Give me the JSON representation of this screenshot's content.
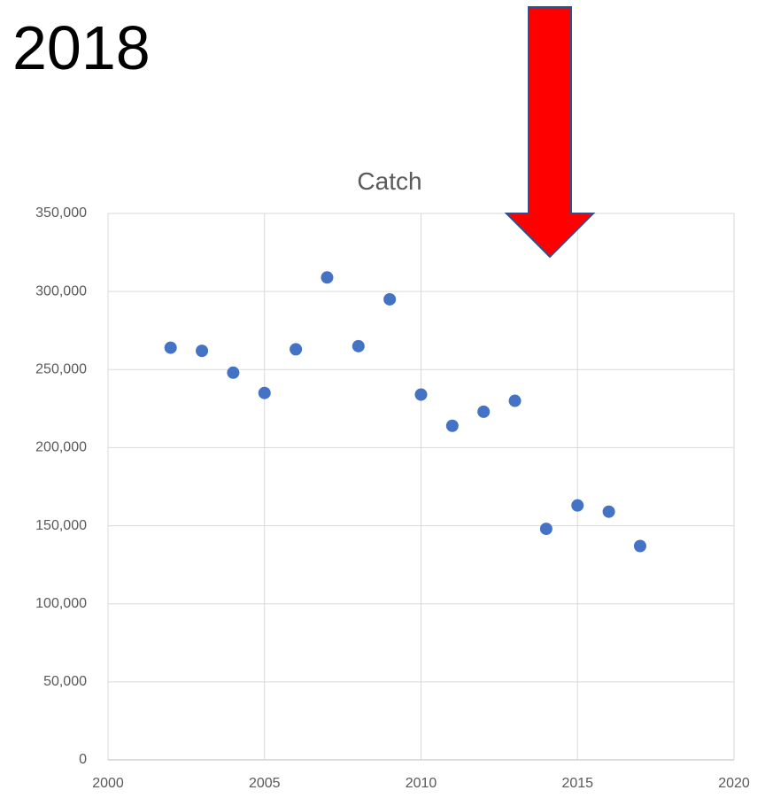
{
  "slide_title": "2018",
  "chart_data": {
    "type": "scatter",
    "title": "Catch",
    "x": [
      2002,
      2003,
      2004,
      2005,
      2006,
      2007,
      2008,
      2009,
      2010,
      2011,
      2012,
      2013,
      2014,
      2015,
      2016,
      2017
    ],
    "values": [
      264000,
      262000,
      248000,
      235000,
      263000,
      309000,
      265000,
      295000,
      234000,
      214000,
      223000,
      230000,
      148000,
      163000,
      159000,
      137000
    ],
    "color": "#4472c4",
    "xlim": [
      2000,
      2020
    ],
    "xticks": [
      2000,
      2005,
      2010,
      2015,
      2020
    ],
    "ylim": [
      0,
      350000
    ],
    "yticks": [
      0,
      {
        "value": 50000,
        "label": "50,000"
      },
      {
        "value": 100000,
        "label": "100,000"
      },
      {
        "value": 150000,
        "label": "150,000"
      },
      {
        "value": 200000,
        "label": "200,000"
      },
      {
        "value": 250000,
        "label": "250,000"
      },
      {
        "value": 300000,
        "label": "300,000"
      },
      {
        "value": 350000,
        "label": "350,000"
      }
    ],
    "grid": true
  }
}
